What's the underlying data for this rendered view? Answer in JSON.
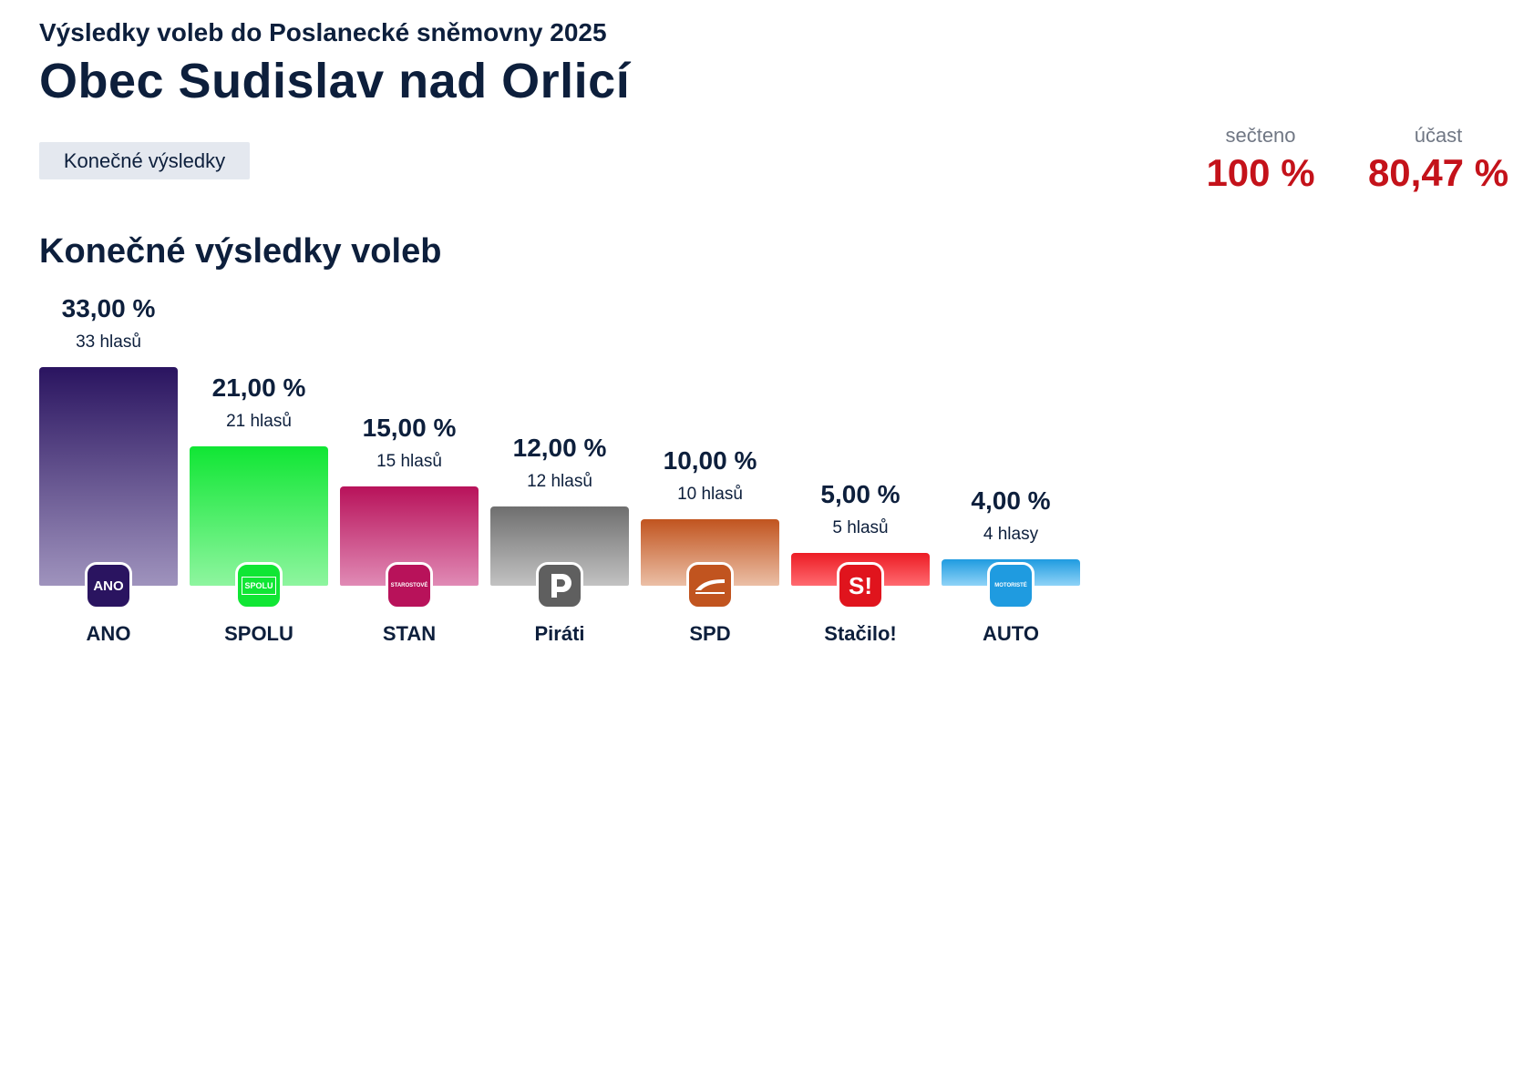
{
  "header": {
    "subtitle": "Výsledky voleb do Poslanecké sněmovny 2025",
    "title": "Obec Sudislav nad Orlicí"
  },
  "tabs": [
    {
      "label": "Konečné výsledky"
    }
  ],
  "stats": {
    "counted": {
      "label": "sečteno",
      "value": "100 %"
    },
    "turnout": {
      "label": "účast",
      "value": "80,47 %"
    }
  },
  "section_title": "Konečné výsledky voleb",
  "chart_data": {
    "type": "bar",
    "title": "Konečné výsledky voleb",
    "unit": "%",
    "ylim": [
      0,
      33
    ],
    "categories": [
      "ANO",
      "SPOLU",
      "STAN",
      "Piráti",
      "SPD",
      "Stačilo!",
      "AUTO"
    ],
    "values": [
      33.0,
      21.0,
      15.0,
      12.0,
      10.0,
      5.0,
      4.0
    ],
    "value_labels": [
      "33,00 %",
      "21,00 %",
      "15,00 %",
      "12,00 %",
      "10,00 %",
      "5,00 %",
      "4,00 %"
    ],
    "vote_labels": [
      "33 hlasů",
      "21 hlasů",
      "15 hlasů",
      "12 hlasů",
      "10 hlasů",
      "5 hlasů",
      "4 hlasy"
    ],
    "logo_text": [
      "ANO",
      "SPOLU",
      "STAROSTOVÉ",
      "",
      "",
      "S!",
      "MOTORISTÉ"
    ],
    "logo_icons": [
      "ano-logo-icon",
      "spolu-logo-icon",
      "stan-logo-icon",
      "pirati-logo-icon",
      "spd-logo-icon",
      "stacilo-logo-icon",
      "auto-logo-icon"
    ],
    "colors": [
      {
        "top": "#2a1460",
        "bottom": "#9f93bd",
        "logo": "#2a1460"
      },
      {
        "top": "#10e634",
        "bottom": "#8ef59f",
        "logo": "#10e634"
      },
      {
        "top": "#b8125a",
        "bottom": "#e08ab5",
        "logo": "#b8125a"
      },
      {
        "top": "#6f6f6f",
        "bottom": "#c2c2c2",
        "logo": "#5f5f5f"
      },
      {
        "top": "#c1541f",
        "bottom": "#ebbfa6",
        "logo": "#c1541f"
      },
      {
        "top": "#ec1c24",
        "bottom": "#ff6a70",
        "logo": "#e0141d"
      },
      {
        "top": "#1f9be0",
        "bottom": "#8fd3f7",
        "logo": "#1f9be0"
      }
    ]
  }
}
